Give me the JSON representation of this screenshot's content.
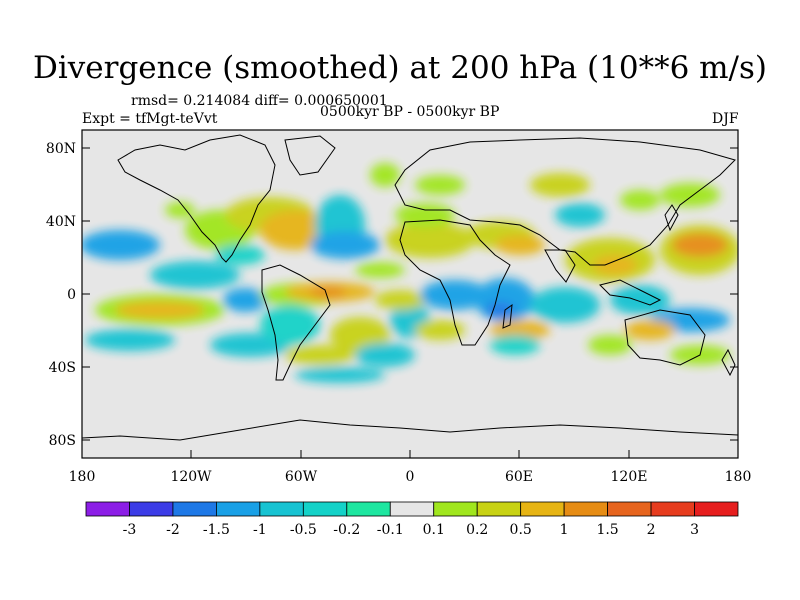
{
  "title": "Divergence (smoothed) at 200 hPa (10**6 m/s)",
  "stats_line": "rmsd= 0.214084 diff= 0.000650001",
  "expt_line": "Expt = tfMgt-teVvt",
  "period_line": "0500kyr BP - 0500kyr BP",
  "season": "DJF",
  "lat_labels": [
    "80N",
    "40N",
    "0",
    "40S",
    "80S"
  ],
  "lon_labels": [
    "180",
    "120W",
    "60W",
    "0",
    "60E",
    "120E",
    "180"
  ],
  "colorbar": {
    "labels": [
      "-3",
      "-2",
      "-1.5",
      "-1",
      "-0.5",
      "-0.2",
      "-0.1",
      "0.1",
      "0.2",
      "0.5",
      "1",
      "1.5",
      "2",
      "3"
    ],
    "colors": [
      "#8c1ee6",
      "#3c3ce6",
      "#1e78e6",
      "#19a0e6",
      "#17c3d2",
      "#14d2c8",
      "#1ee6a0",
      "#e6e6e6",
      "#a0e61e",
      "#c8d214",
      "#e6b414",
      "#e68c14",
      "#e6641e",
      "#e63c1e",
      "#e61e1e"
    ]
  },
  "map_background": "#e6e6e6"
}
